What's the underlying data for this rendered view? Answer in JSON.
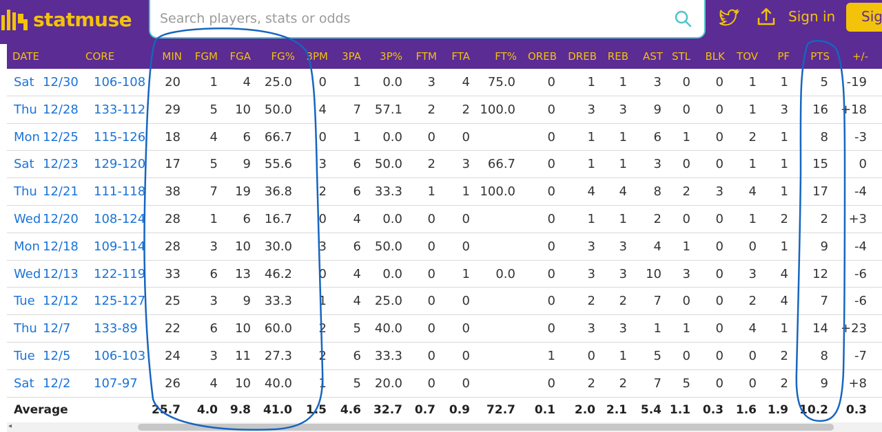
{
  "header": {
    "logo_text": "statmuse",
    "search_placeholder": "Search players, stats or odds",
    "signin_label": "Sign in",
    "signup_label": "Sig",
    "colors": {
      "brand_purple": "#5b2c93",
      "brand_gold": "#f3c20b",
      "search_border": "#4cc3cd",
      "link_blue": "#1a73d9"
    },
    "icons": [
      "logo-icon",
      "search-icon",
      "twitter-icon",
      "upload-icon"
    ]
  },
  "columns": [
    "DATE",
    "CORE",
    "MIN",
    "FGM",
    "FGA",
    "FG%",
    "3PM",
    "3PA",
    "3P%",
    "FTM",
    "FTA",
    "FT%",
    "OREB",
    "DREB",
    "REB",
    "AST",
    "STL",
    "BLK",
    "TOV",
    "PF",
    "PTS",
    "+/-"
  ],
  "rows": [
    {
      "day": "Sat",
      "date": "12/30",
      "score": "106-108",
      "min": "20",
      "fgm": "1",
      "fga": "4",
      "fgp": "25.0",
      "tpm": "0",
      "tpa": "1",
      "tpp": "0.0",
      "ftm": "3",
      "fta": "4",
      "ftp": "75.0",
      "oreb": "0",
      "dreb": "1",
      "reb": "1",
      "ast": "3",
      "stl": "0",
      "blk": "0",
      "tov": "1",
      "pf": "1",
      "pts": "5",
      "pm": "-19"
    },
    {
      "day": "Thu",
      "date": "12/28",
      "score": "133-112",
      "min": "29",
      "fgm": "5",
      "fga": "10",
      "fgp": "50.0",
      "tpm": "4",
      "tpa": "7",
      "tpp": "57.1",
      "ftm": "2",
      "fta": "2",
      "ftp": "100.0",
      "oreb": "0",
      "dreb": "3",
      "reb": "3",
      "ast": "9",
      "stl": "0",
      "blk": "0",
      "tov": "1",
      "pf": "3",
      "pts": "16",
      "pm": "+18"
    },
    {
      "day": "Mon",
      "date": "12/25",
      "score": "115-126",
      "min": "18",
      "fgm": "4",
      "fga": "6",
      "fgp": "66.7",
      "tpm": "0",
      "tpa": "1",
      "tpp": "0.0",
      "ftm": "0",
      "fta": "0",
      "ftp": "",
      "oreb": "0",
      "dreb": "1",
      "reb": "1",
      "ast": "6",
      "stl": "1",
      "blk": "0",
      "tov": "2",
      "pf": "1",
      "pts": "8",
      "pm": "-3"
    },
    {
      "day": "Sat",
      "date": "12/23",
      "score": "129-120",
      "min": "17",
      "fgm": "5",
      "fga": "9",
      "fgp": "55.6",
      "tpm": "3",
      "tpa": "6",
      "tpp": "50.0",
      "ftm": "2",
      "fta": "3",
      "ftp": "66.7",
      "oreb": "0",
      "dreb": "1",
      "reb": "1",
      "ast": "3",
      "stl": "0",
      "blk": "0",
      "tov": "1",
      "pf": "1",
      "pts": "15",
      "pm": "0"
    },
    {
      "day": "Thu",
      "date": "12/21",
      "score": "111-118",
      "min": "38",
      "fgm": "7",
      "fga": "19",
      "fgp": "36.8",
      "tpm": "2",
      "tpa": "6",
      "tpp": "33.3",
      "ftm": "1",
      "fta": "1",
      "ftp": "100.0",
      "oreb": "0",
      "dreb": "4",
      "reb": "4",
      "ast": "8",
      "stl": "2",
      "blk": "3",
      "tov": "4",
      "pf": "1",
      "pts": "17",
      "pm": "-4"
    },
    {
      "day": "Wed",
      "date": "12/20",
      "score": "108-124",
      "min": "28",
      "fgm": "1",
      "fga": "6",
      "fgp": "16.7",
      "tpm": "0",
      "tpa": "4",
      "tpp": "0.0",
      "ftm": "0",
      "fta": "0",
      "ftp": "",
      "oreb": "0",
      "dreb": "1",
      "reb": "1",
      "ast": "2",
      "stl": "0",
      "blk": "0",
      "tov": "1",
      "pf": "2",
      "pts": "2",
      "pm": "+3"
    },
    {
      "day": "Mon",
      "date": "12/18",
      "score": "109-114",
      "min": "28",
      "fgm": "3",
      "fga": "10",
      "fgp": "30.0",
      "tpm": "3",
      "tpa": "6",
      "tpp": "50.0",
      "ftm": "0",
      "fta": "0",
      "ftp": "",
      "oreb": "0",
      "dreb": "3",
      "reb": "3",
      "ast": "4",
      "stl": "1",
      "blk": "0",
      "tov": "0",
      "pf": "1",
      "pts": "9",
      "pm": "-4"
    },
    {
      "day": "Wed",
      "date": "12/13",
      "score": "122-119",
      "min": "33",
      "fgm": "6",
      "fga": "13",
      "fgp": "46.2",
      "tpm": "0",
      "tpa": "4",
      "tpp": "0.0",
      "ftm": "0",
      "fta": "1",
      "ftp": "0.0",
      "oreb": "0",
      "dreb": "3",
      "reb": "3",
      "ast": "10",
      "stl": "3",
      "blk": "0",
      "tov": "3",
      "pf": "4",
      "pts": "12",
      "pm": "-6"
    },
    {
      "day": "Tue",
      "date": "12/12",
      "score": "125-127",
      "min": "25",
      "fgm": "3",
      "fga": "9",
      "fgp": "33.3",
      "tpm": "1",
      "tpa": "4",
      "tpp": "25.0",
      "ftm": "0",
      "fta": "0",
      "ftp": "",
      "oreb": "0",
      "dreb": "2",
      "reb": "2",
      "ast": "7",
      "stl": "0",
      "blk": "0",
      "tov": "2",
      "pf": "4",
      "pts": "7",
      "pm": "-6"
    },
    {
      "day": "Thu",
      "date": "12/7",
      "score": "133-89",
      "min": "22",
      "fgm": "6",
      "fga": "10",
      "fgp": "60.0",
      "tpm": "2",
      "tpa": "5",
      "tpp": "40.0",
      "ftm": "0",
      "fta": "0",
      "ftp": "",
      "oreb": "0",
      "dreb": "3",
      "reb": "3",
      "ast": "1",
      "stl": "1",
      "blk": "0",
      "tov": "4",
      "pf": "1",
      "pts": "14",
      "pm": "+23"
    },
    {
      "day": "Tue",
      "date": "12/5",
      "score": "106-103",
      "min": "24",
      "fgm": "3",
      "fga": "11",
      "fgp": "27.3",
      "tpm": "2",
      "tpa": "6",
      "tpp": "33.3",
      "ftm": "0",
      "fta": "0",
      "ftp": "",
      "oreb": "1",
      "dreb": "0",
      "reb": "1",
      "ast": "5",
      "stl": "0",
      "blk": "0",
      "tov": "0",
      "pf": "2",
      "pts": "8",
      "pm": "-7"
    },
    {
      "day": "Sat",
      "date": "12/2",
      "score": "107-97",
      "min": "26",
      "fgm": "4",
      "fga": "10",
      "fgp": "40.0",
      "tpm": "1",
      "tpa": "5",
      "tpp": "20.0",
      "ftm": "0",
      "fta": "0",
      "ftp": "",
      "oreb": "0",
      "dreb": "2",
      "reb": "2",
      "ast": "7",
      "stl": "5",
      "blk": "0",
      "tov": "0",
      "pf": "2",
      "pts": "9",
      "pm": "+8"
    }
  ],
  "average": {
    "label": "Average",
    "min": "25.7",
    "fgm": "4.0",
    "fga": "9.8",
    "fgp": "41.0",
    "tpm": "1.5",
    "tpa": "4.6",
    "tpp": "32.7",
    "ftm": "0.7",
    "fta": "0.9",
    "ftp": "72.7",
    "oreb": "0.1",
    "dreb": "2.0",
    "reb": "2.1",
    "ast": "5.4",
    "stl": "1.1",
    "blk": "0.3",
    "tov": "1.6",
    "pf": "1.9",
    "pts": "10.2",
    "pm": "0.3"
  },
  "annotations": {
    "color": "#1565c0"
  }
}
